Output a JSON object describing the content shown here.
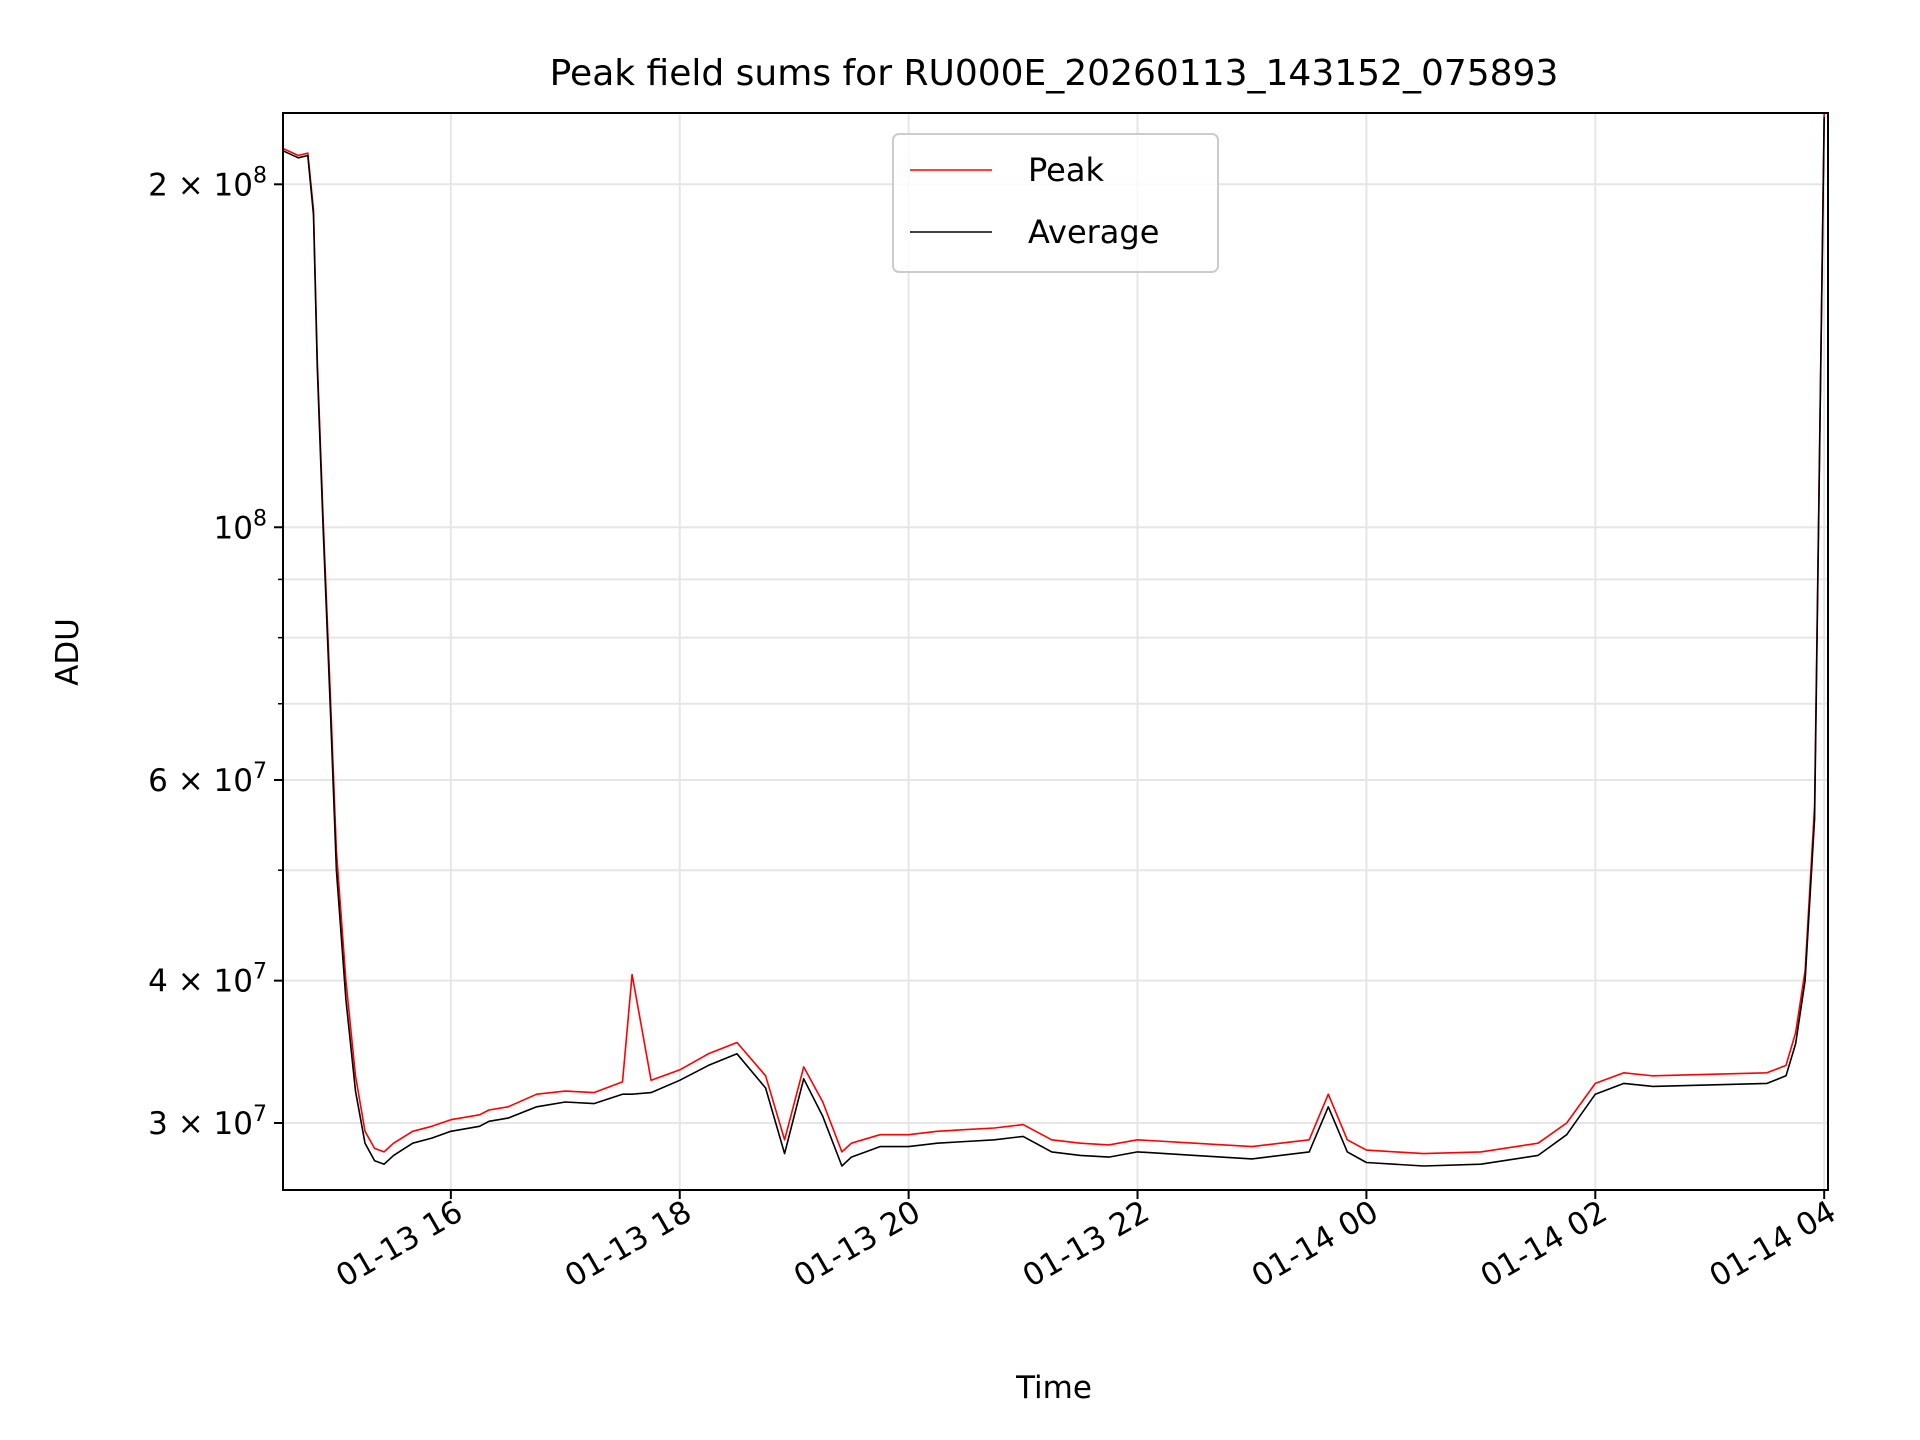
{
  "chart_data": {
    "type": "line",
    "title": "Peak field sums for RU000E_20260113_143152_075893",
    "xlabel": "Time",
    "ylabel": "ADU",
    "yscale": "log",
    "ylim": [
      26200000,
      231000000
    ],
    "xlim": [
      "01-13 14:32",
      "01-14 04:02"
    ],
    "grid": true,
    "legend_position": "top-center",
    "x_ticks": [
      "01-13 16",
      "01-13 18",
      "01-13 20",
      "01-13 22",
      "01-14 00",
      "01-14 02",
      "01-14 04"
    ],
    "y_ticks": [
      {
        "value": 30000000,
        "mantissa": "3",
        "exponent": "7"
      },
      {
        "value": 40000000,
        "mantissa": "4",
        "exponent": "7"
      },
      {
        "value": 60000000,
        "mantissa": "6",
        "exponent": "7"
      },
      {
        "value": 100000000,
        "mantissa": "",
        "exponent": "8"
      },
      {
        "value": 200000000,
        "mantissa": "2",
        "exponent": "8"
      }
    ],
    "y_minor_ticks": [
      50000000,
      70000000,
      80000000,
      90000000
    ],
    "times": [
      "01-13 14:32",
      "01-13 14:40",
      "01-13 14:45",
      "01-13 14:48",
      "01-13 14:50",
      "01-13 14:53",
      "01-13 14:57",
      "01-13 15:00",
      "01-13 15:05",
      "01-13 15:10",
      "01-13 15:15",
      "01-13 15:20",
      "01-13 15:25",
      "01-13 15:30",
      "01-13 15:40",
      "01-13 15:50",
      "01-13 16:00",
      "01-13 16:15",
      "01-13 16:20",
      "01-13 16:30",
      "01-13 16:45",
      "01-13 17:00",
      "01-13 17:15",
      "01-13 17:30",
      "01-13 17:35",
      "01-13 17:45",
      "01-13 18:00",
      "01-13 18:15",
      "01-13 18:30",
      "01-13 18:45",
      "01-13 18:55",
      "01-13 19:05",
      "01-13 19:15",
      "01-13 19:25",
      "01-13 19:30",
      "01-13 19:45",
      "01-13 20:00",
      "01-13 20:15",
      "01-13 20:30",
      "01-13 20:45",
      "01-13 21:00",
      "01-13 21:15",
      "01-13 21:30",
      "01-13 21:45",
      "01-13 22:00",
      "01-13 22:30",
      "01-13 23:00",
      "01-13 23:30",
      "01-13 23:40",
      "01-13 23:50",
      "01-14 00:00",
      "01-14 00:30",
      "01-14 01:00",
      "01-14 01:30",
      "01-14 01:45",
      "01-14 02:00",
      "01-14 02:15",
      "01-14 02:30",
      "01-14 03:00",
      "01-14 03:30",
      "01-14 03:40",
      "01-14 03:45",
      "01-14 03:50",
      "01-14 03:55",
      "01-14 04:00"
    ],
    "series": [
      {
        "name": "Peak",
        "color": "#ff0000",
        "values": [
          215000000,
          212000000,
          213000000,
          190000000,
          140000000,
          102000000,
          70000000,
          52000000,
          40000000,
          33000000,
          29500000,
          28500000,
          28300000,
          28800000,
          29500000,
          29800000,
          30200000,
          30500000,
          30800000,
          31000000,
          31800000,
          32000000,
          31900000,
          32600000,
          40500000,
          32700000,
          33400000,
          34500000,
          35300000,
          33000000,
          29000000,
          33600000,
          31300000,
          28300000,
          28800000,
          29300000,
          29300000,
          29500000,
          29600000,
          29700000,
          29900000,
          29000000,
          28800000,
          28700000,
          29000000,
          28800000,
          28600000,
          29000000,
          31800000,
          29000000,
          28400000,
          28200000,
          28300000,
          28800000,
          30000000,
          32500000,
          33200000,
          33000000,
          33100000,
          33200000,
          33700000,
          36000000,
          40800000,
          57000000,
          231000000
        ]
      },
      {
        "name": "Average",
        "color": "#000000",
        "values": [
          214000000,
          211000000,
          212000000,
          188000000,
          138000000,
          100000000,
          68000000,
          50000000,
          38500000,
          32000000,
          28800000,
          27800000,
          27600000,
          28100000,
          28800000,
          29100000,
          29500000,
          29800000,
          30100000,
          30300000,
          31000000,
          31300000,
          31200000,
          31800000,
          31800000,
          31900000,
          32700000,
          33700000,
          34500000,
          32200000,
          28200000,
          32800000,
          30400000,
          27500000,
          28000000,
          28600000,
          28600000,
          28800000,
          28900000,
          29000000,
          29200000,
          28300000,
          28100000,
          28000000,
          28300000,
          28100000,
          27900000,
          28300000,
          31000000,
          28300000,
          27700000,
          27500000,
          27600000,
          28100000,
          29300000,
          31800000,
          32500000,
          32300000,
          32400000,
          32500000,
          33000000,
          35200000,
          40000000,
          55500000,
          229000000
        ]
      }
    ]
  }
}
